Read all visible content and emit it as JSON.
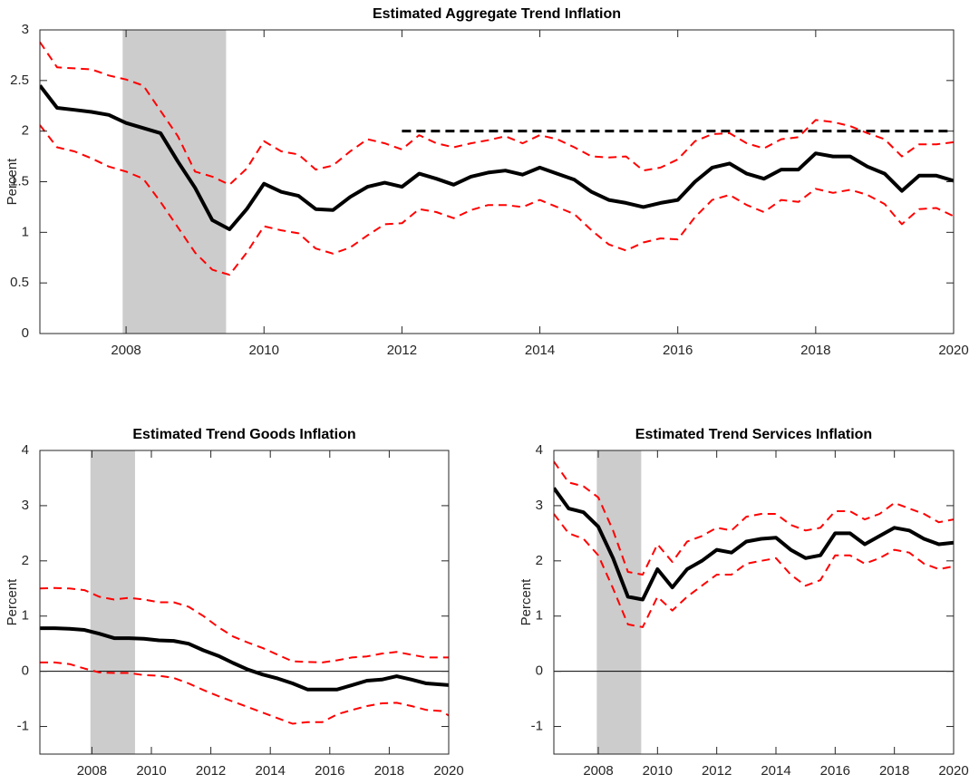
{
  "chart_data": [
    {
      "type": "line",
      "title": "Estimated Aggregate Trend Inflation",
      "ylabel": "Percent",
      "x": [
        2006.75,
        2007,
        2007.25,
        2007.5,
        2007.75,
        2008,
        2008.25,
        2008.5,
        2008.75,
        2009,
        2009.25,
        2009.5,
        2009.75,
        2010,
        2010.25,
        2010.5,
        2010.75,
        2011,
        2011.25,
        2011.5,
        2011.75,
        2012,
        2012.25,
        2012.5,
        2012.75,
        2013,
        2013.25,
        2013.5,
        2013.75,
        2014,
        2014.25,
        2014.5,
        2014.75,
        2015,
        2015.25,
        2015.5,
        2015.75,
        2016,
        2016.25,
        2016.5,
        2016.75,
        2017,
        2017.25,
        2017.5,
        2017.75,
        2018,
        2018.25,
        2018.5,
        2018.75,
        2019,
        2019.25,
        2019.5,
        2019.75,
        2020
      ],
      "series": [
        {
          "color": "#ff0000",
          "dash": true,
          "width": 2,
          "values": [
            2.88,
            2.63,
            2.62,
            2.61,
            2.55,
            2.51,
            2.45,
            2.2,
            1.95,
            1.6,
            1.55,
            1.47,
            1.63,
            1.9,
            1.8,
            1.77,
            1.62,
            1.66,
            1.8,
            1.92,
            1.88,
            1.82,
            1.96,
            1.88,
            1.84,
            1.88,
            1.91,
            1.95,
            1.88,
            1.96,
            1.92,
            1.84,
            1.75,
            1.74,
            1.75,
            1.61,
            1.64,
            1.72,
            1.9,
            1.97,
            1.98,
            1.88,
            1.83,
            1.92,
            1.94,
            2.11,
            2.09,
            2.05,
            1.98,
            1.92,
            1.75,
            1.87,
            1.87,
            1.89
          ]
        },
        {
          "color": "#ff0000",
          "dash": true,
          "width": 2,
          "values": [
            2.06,
            1.84,
            1.8,
            1.73,
            1.65,
            1.6,
            1.53,
            1.3,
            1.05,
            0.8,
            0.63,
            0.58,
            0.8,
            1.06,
            1.02,
            0.99,
            0.84,
            0.79,
            0.85,
            0.97,
            1.08,
            1.09,
            1.23,
            1.2,
            1.14,
            1.22,
            1.27,
            1.27,
            1.25,
            1.32,
            1.25,
            1.18,
            1.02,
            0.88,
            0.82,
            0.9,
            0.94,
            0.93,
            1.15,
            1.32,
            1.37,
            1.27,
            1.2,
            1.32,
            1.3,
            1.43,
            1.39,
            1.42,
            1.37,
            1.28,
            1.08,
            1.23,
            1.24,
            1.16
          ]
        },
        {
          "color": "#000000",
          "dash": false,
          "width": 4,
          "values": [
            2.45,
            2.23,
            2.21,
            2.19,
            2.16,
            2.08,
            2.03,
            1.98,
            1.7,
            1.44,
            1.12,
            1.03,
            1.23,
            1.48,
            1.4,
            1.36,
            1.23,
            1.22,
            1.35,
            1.45,
            1.49,
            1.45,
            1.58,
            1.53,
            1.47,
            1.55,
            1.59,
            1.61,
            1.57,
            1.64,
            1.58,
            1.52,
            1.4,
            1.32,
            1.29,
            1.25,
            1.29,
            1.32,
            1.5,
            1.64,
            1.68,
            1.58,
            1.53,
            1.62,
            1.62,
            1.78,
            1.75,
            1.75,
            1.65,
            1.58,
            1.41,
            1.56,
            1.56,
            1.51
          ]
        }
      ],
      "recession": [
        2007.95,
        2009.45
      ],
      "recession_color": "#cccccc",
      "target_line": {
        "value": 2,
        "x_start": 2012,
        "x_end": 2020,
        "color": "#000000"
      },
      "xlim": [
        2006.75,
        2020
      ],
      "xticks": [
        2008,
        2010,
        2012,
        2014,
        2016,
        2018,
        2020
      ],
      "ylim": [
        0,
        3
      ],
      "yticks": [
        0,
        0.5,
        1,
        1.5,
        2,
        2.5,
        3
      ],
      "grid": false
    },
    {
      "type": "line",
      "title": "Estimated Trend Goods Inflation",
      "ylabel": "Percent",
      "x": [
        2006.25,
        2006.75,
        2007.25,
        2007.75,
        2008.25,
        2008.75,
        2009.25,
        2009.75,
        2010.25,
        2010.75,
        2011.25,
        2011.75,
        2012.25,
        2012.75,
        2013.25,
        2013.75,
        2014.25,
        2014.75,
        2015.25,
        2015.75,
        2016.25,
        2016.75,
        2017.25,
        2017.75,
        2018.25,
        2018.75,
        2019.25,
        2019.75,
        2020
      ],
      "series": [
        {
          "color": "#ff0000",
          "dash": true,
          "width": 2,
          "values": [
            1.5,
            1.51,
            1.5,
            1.47,
            1.35,
            1.3,
            1.33,
            1.3,
            1.25,
            1.25,
            1.17,
            1.0,
            0.8,
            0.63,
            0.52,
            0.42,
            0.3,
            0.18,
            0.17,
            0.16,
            0.2,
            0.25,
            0.27,
            0.32,
            0.35,
            0.3,
            0.25,
            0.25,
            0.25
          ]
        },
        {
          "color": "#ff0000",
          "dash": true,
          "width": 2,
          "values": [
            0.16,
            0.16,
            0.13,
            0.05,
            -0.02,
            -0.03,
            -0.03,
            -0.07,
            -0.08,
            -0.12,
            -0.22,
            -0.34,
            -0.45,
            -0.55,
            -0.65,
            -0.75,
            -0.85,
            -0.95,
            -0.92,
            -0.92,
            -0.78,
            -0.7,
            -0.63,
            -0.58,
            -0.57,
            -0.63,
            -0.7,
            -0.72,
            -0.8
          ]
        },
        {
          "color": "#000000",
          "dash": false,
          "width": 4,
          "values": [
            0.78,
            0.78,
            0.77,
            0.75,
            0.68,
            0.6,
            0.6,
            0.59,
            0.56,
            0.55,
            0.5,
            0.38,
            0.28,
            0.15,
            0.03,
            -0.06,
            -0.13,
            -0.22,
            -0.33,
            -0.33,
            -0.33,
            -0.25,
            -0.17,
            -0.15,
            -0.09,
            -0.15,
            -0.22,
            -0.24,
            -0.25
          ]
        }
      ],
      "recession": [
        2007.95,
        2009.45
      ],
      "recession_color": "#cccccc",
      "hline": 0,
      "xlim": [
        2006.25,
        2020
      ],
      "xticks": [
        2008,
        2010,
        2012,
        2014,
        2016,
        2018,
        2020
      ],
      "ylim": [
        -1.5,
        4
      ],
      "yticks": [
        -1,
        0,
        1,
        2,
        3,
        4
      ],
      "grid": false
    },
    {
      "type": "line",
      "title": "Estimated Trend Services Inflation",
      "ylabel": "Percent",
      "x": [
        2006.5,
        2007,
        2007.5,
        2008,
        2008.5,
        2009,
        2009.5,
        2010,
        2010.5,
        2011,
        2011.5,
        2012,
        2012.5,
        2013,
        2013.5,
        2014,
        2014.5,
        2015,
        2015.5,
        2016,
        2016.5,
        2017,
        2017.5,
        2018,
        2018.5,
        2019,
        2019.5,
        2020
      ],
      "series": [
        {
          "color": "#ff0000",
          "dash": true,
          "width": 2,
          "values": [
            3.8,
            3.42,
            3.35,
            3.15,
            2.55,
            1.8,
            1.75,
            2.3,
            1.98,
            2.35,
            2.45,
            2.6,
            2.55,
            2.8,
            2.85,
            2.85,
            2.65,
            2.55,
            2.6,
            2.9,
            2.9,
            2.75,
            2.85,
            3.05,
            2.95,
            2.85,
            2.7,
            2.75
          ]
        },
        {
          "color": "#ff0000",
          "dash": true,
          "width": 2,
          "values": [
            2.85,
            2.5,
            2.4,
            2.1,
            1.5,
            0.85,
            0.8,
            1.35,
            1.1,
            1.35,
            1.55,
            1.75,
            1.75,
            1.95,
            2.0,
            2.05,
            1.75,
            1.55,
            1.65,
            2.1,
            2.1,
            1.95,
            2.05,
            2.2,
            2.15,
            1.95,
            1.85,
            1.9
          ]
        },
        {
          "color": "#000000",
          "dash": false,
          "width": 4,
          "values": [
            3.32,
            2.95,
            2.88,
            2.62,
            2.05,
            1.35,
            1.3,
            1.85,
            1.52,
            1.85,
            2.0,
            2.2,
            2.15,
            2.35,
            2.4,
            2.42,
            2.2,
            2.05,
            2.1,
            2.5,
            2.5,
            2.3,
            2.45,
            2.6,
            2.55,
            2.4,
            2.3,
            2.33
          ]
        }
      ],
      "recession": [
        2007.95,
        2009.45
      ],
      "recession_color": "#cccccc",
      "hline": 0,
      "xlim": [
        2006.5,
        2020
      ],
      "xticks": [
        2008,
        2010,
        2012,
        2014,
        2016,
        2018,
        2020
      ],
      "ylim": [
        -1.5,
        4
      ],
      "yticks": [
        -1,
        0,
        1,
        2,
        3,
        4
      ],
      "grid": false
    }
  ]
}
